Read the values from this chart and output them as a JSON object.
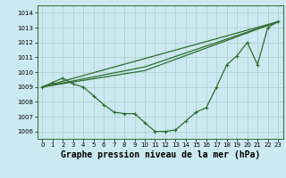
{
  "xlabel": "Graphe pression niveau de la mer (hPa)",
  "x": [
    0,
    1,
    2,
    3,
    4,
    5,
    6,
    7,
    8,
    9,
    10,
    11,
    12,
    13,
    14,
    15,
    16,
    17,
    18,
    19,
    20,
    21,
    22,
    23
  ],
  "y_main": [
    1009.0,
    1009.3,
    1009.6,
    1009.2,
    1009.0,
    1008.4,
    1007.8,
    1007.3,
    1007.2,
    1007.2,
    1006.6,
    1006.0,
    1006.0,
    1006.1,
    1006.7,
    1007.3,
    1007.6,
    1009.0,
    1010.5,
    1011.1,
    1012.0,
    1010.5,
    1013.0,
    1013.4
  ],
  "bg_color": "#cce8f0",
  "grid_color": "#aacccc",
  "line_color": "#2d6e2d",
  "ylim": [
    1005.5,
    1014.5
  ],
  "xlim": [
    -0.5,
    23.5
  ],
  "yticks": [
    1006,
    1007,
    1008,
    1009,
    1010,
    1011,
    1012,
    1013,
    1014
  ],
  "xticks": [
    0,
    1,
    2,
    3,
    4,
    5,
    6,
    7,
    8,
    9,
    10,
    11,
    12,
    13,
    14,
    15,
    16,
    17,
    18,
    19,
    20,
    21,
    22,
    23
  ],
  "tick_fontsize": 5.0,
  "xlabel_fontsize": 7.0,
  "markersize": 3.5,
  "linewidth": 0.9,
  "line2_x": [
    0,
    23
  ],
  "line2_y": [
    1009.0,
    1013.4
  ],
  "line3_x": [
    0,
    10,
    23
  ],
  "line3_y": [
    1009.0,
    1010.1,
    1013.4
  ],
  "line4_x": [
    0,
    10,
    23
  ],
  "line4_y": [
    1009.0,
    1010.35,
    1013.4
  ]
}
